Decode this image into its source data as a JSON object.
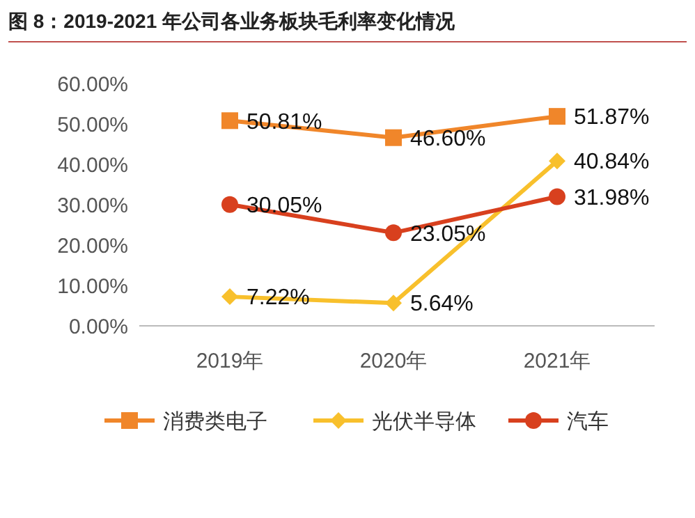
{
  "chart_data": {
    "type": "line",
    "title": "图 8：2019-2021 年公司各业务板块毛利率变化情况",
    "categories": [
      "2019年",
      "2020年",
      "2021年"
    ],
    "series": [
      {
        "name": "消费类电子",
        "color": "#f0862a",
        "marker": "square",
        "values": [
          50.81,
          46.6,
          51.87
        ],
        "value_labels": [
          "50.81%",
          "46.60%",
          "51.87%"
        ]
      },
      {
        "name": "光伏半导体",
        "color": "#f8c02c",
        "marker": "diamond",
        "values": [
          7.22,
          5.64,
          40.84
        ],
        "value_labels": [
          "7.22%",
          "5.64%",
          "40.84%"
        ]
      },
      {
        "name": "汽车",
        "color": "#d8401e",
        "marker": "circle",
        "values": [
          30.05,
          23.05,
          31.98
        ],
        "value_labels": [
          "30.05%",
          "23.05%",
          "31.98%"
        ]
      }
    ],
    "ylim": [
      0,
      60
    ],
    "yticks": [
      {
        "value": 0,
        "label": "0.00%"
      },
      {
        "value": 10,
        "label": "10.00%"
      },
      {
        "value": 20,
        "label": "20.00%"
      },
      {
        "value": 30,
        "label": "30.00%"
      },
      {
        "value": 40,
        "label": "40.00%"
      },
      {
        "value": 50,
        "label": "50.00%"
      },
      {
        "value": 60,
        "label": "60.00%"
      }
    ],
    "grid": false,
    "legend": "bottom"
  }
}
